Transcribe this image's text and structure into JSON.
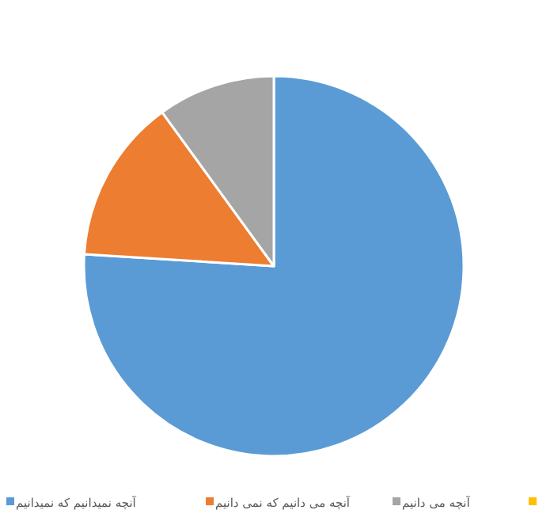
{
  "chart_data": {
    "type": "pie",
    "categories": [
      "آنچه نمیدانیم که نمیدانیم",
      "آنچه می دانیم که نمی دانیم",
      "آنچه می دانیم",
      null
    ],
    "values": [
      76,
      14,
      10,
      0
    ],
    "colors": [
      "#5b9bd5",
      "#ed7d31",
      "#a5a5a5",
      "#ffc000"
    ],
    "legend": "bottom"
  }
}
